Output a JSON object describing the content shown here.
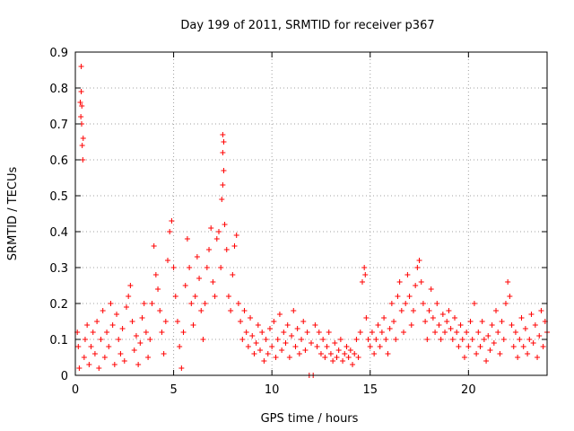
{
  "chart_data": {
    "type": "scatter",
    "title": "Day 199 of 2011, SRMTID for receiver p367",
    "xlabel": "GPS time / hours",
    "ylabel": "SRMTID / TECUs",
    "xlim": [
      0,
      24
    ],
    "ylim": [
      0,
      0.9
    ],
    "xticks": [
      0,
      5,
      10,
      15,
      20
    ],
    "xtick_labels": [
      "0",
      "5",
      "10",
      "15",
      "20"
    ],
    "yticks": [
      0,
      0.1,
      0.2,
      0.3,
      0.4,
      0.5,
      0.6,
      0.7,
      0.8,
      0.9
    ],
    "ytick_labels": [
      "0",
      "0.1",
      "0.2",
      "0.3",
      "0.4",
      "0.5",
      "0.6",
      "0.7",
      "0.8",
      "0.9"
    ],
    "grid": true,
    "marker": "plus",
    "series": [
      {
        "name": "SRMTID",
        "color": "#ff0000",
        "points": [
          [
            0.1,
            0.12
          ],
          [
            0.15,
            0.08
          ],
          [
            0.2,
            0.02
          ],
          [
            0.25,
            0.76
          ],
          [
            0.28,
            0.72
          ],
          [
            0.3,
            0.86
          ],
          [
            0.32,
            0.7
          ],
          [
            0.35,
            0.64
          ],
          [
            0.38,
            0.6
          ],
          [
            0.4,
            0.66
          ],
          [
            0.3,
            0.79
          ],
          [
            0.33,
            0.75
          ],
          [
            0.45,
            0.05
          ],
          [
            0.5,
            0.1
          ],
          [
            0.6,
            0.14
          ],
          [
            0.7,
            0.03
          ],
          [
            0.8,
            0.08
          ],
          [
            0.9,
            0.12
          ],
          [
            1.0,
            0.06
          ],
          [
            1.1,
            0.15
          ],
          [
            1.2,
            0.02
          ],
          [
            1.3,
            0.1
          ],
          [
            1.4,
            0.18
          ],
          [
            1.5,
            0.05
          ],
          [
            1.6,
            0.12
          ],
          [
            1.7,
            0.08
          ],
          [
            1.8,
            0.2
          ],
          [
            1.9,
            0.14
          ],
          [
            2.0,
            0.03
          ],
          [
            2.1,
            0.17
          ],
          [
            2.2,
            0.1
          ],
          [
            2.3,
            0.06
          ],
          [
            2.4,
            0.13
          ],
          [
            2.5,
            0.04
          ],
          [
            2.6,
            0.19
          ],
          [
            2.7,
            0.22
          ],
          [
            2.8,
            0.25
          ],
          [
            2.9,
            0.15
          ],
          [
            3.0,
            0.07
          ],
          [
            3.1,
            0.11
          ],
          [
            3.2,
            0.03
          ],
          [
            3.3,
            0.09
          ],
          [
            3.4,
            0.16
          ],
          [
            3.5,
            0.2
          ],
          [
            3.6,
            0.12
          ],
          [
            3.7,
            0.05
          ],
          [
            3.8,
            0.1
          ],
          [
            3.9,
            0.2
          ],
          [
            4.0,
            0.36
          ],
          [
            4.1,
            0.28
          ],
          [
            4.2,
            0.24
          ],
          [
            4.3,
            0.18
          ],
          [
            4.4,
            0.12
          ],
          [
            4.5,
            0.06
          ],
          [
            4.6,
            0.15
          ],
          [
            4.7,
            0.32
          ],
          [
            4.8,
            0.4
          ],
          [
            4.9,
            0.43
          ],
          [
            5.0,
            0.3
          ],
          [
            5.1,
            0.22
          ],
          [
            5.2,
            0.15
          ],
          [
            5.3,
            0.08
          ],
          [
            5.4,
            0.02
          ],
          [
            5.5,
            0.12
          ],
          [
            5.6,
            0.25
          ],
          [
            5.7,
            0.38
          ],
          [
            5.8,
            0.3
          ],
          [
            5.9,
            0.2
          ],
          [
            6.0,
            0.14
          ],
          [
            6.1,
            0.22
          ],
          [
            6.2,
            0.33
          ],
          [
            6.3,
            0.27
          ],
          [
            6.4,
            0.18
          ],
          [
            6.5,
            0.1
          ],
          [
            6.6,
            0.2
          ],
          [
            6.7,
            0.3
          ],
          [
            6.8,
            0.35
          ],
          [
            6.9,
            0.41
          ],
          [
            7.0,
            0.26
          ],
          [
            7.1,
            0.22
          ],
          [
            7.2,
            0.38
          ],
          [
            7.3,
            0.4
          ],
          [
            7.4,
            0.3
          ],
          [
            7.45,
            0.49
          ],
          [
            7.5,
            0.53
          ],
          [
            7.55,
            0.57
          ],
          [
            7.5,
            0.62
          ],
          [
            7.5,
            0.67
          ],
          [
            7.55,
            0.65
          ],
          [
            7.6,
            0.42
          ],
          [
            7.7,
            0.35
          ],
          [
            7.8,
            0.22
          ],
          [
            7.9,
            0.18
          ],
          [
            8.0,
            0.28
          ],
          [
            8.1,
            0.36
          ],
          [
            8.2,
            0.39
          ],
          [
            8.3,
            0.2
          ],
          [
            8.4,
            0.15
          ],
          [
            8.5,
            0.1
          ],
          [
            8.6,
            0.18
          ],
          [
            8.7,
            0.12
          ],
          [
            8.8,
            0.08
          ],
          [
            8.9,
            0.16
          ],
          [
            9.0,
            0.11
          ],
          [
            9.1,
            0.06
          ],
          [
            9.2,
            0.09
          ],
          [
            9.3,
            0.14
          ],
          [
            9.4,
            0.07
          ],
          [
            9.5,
            0.12
          ],
          [
            9.6,
            0.04
          ],
          [
            9.7,
            0.1
          ],
          [
            9.8,
            0.06
          ],
          [
            9.9,
            0.13
          ],
          [
            10.0,
            0.08
          ],
          [
            10.1,
            0.15
          ],
          [
            10.2,
            0.05
          ],
          [
            10.3,
            0.1
          ],
          [
            10.4,
            0.17
          ],
          [
            10.5,
            0.07
          ],
          [
            10.6,
            0.12
          ],
          [
            10.7,
            0.09
          ],
          [
            10.8,
            0.14
          ],
          [
            10.9,
            0.05
          ],
          [
            11.0,
            0.11
          ],
          [
            11.1,
            0.18
          ],
          [
            11.2,
            0.08
          ],
          [
            11.3,
            0.13
          ],
          [
            11.4,
            0.06
          ],
          [
            11.5,
            0.1
          ],
          [
            11.6,
            0.15
          ],
          [
            11.7,
            0.07
          ],
          [
            11.8,
            0.12
          ],
          [
            11.9,
            0.0
          ],
          [
            12.1,
            0.0
          ],
          [
            12.0,
            0.09
          ],
          [
            12.2,
            0.14
          ],
          [
            12.3,
            0.08
          ],
          [
            12.4,
            0.12
          ],
          [
            12.5,
            0.06
          ],
          [
            12.6,
            0.1
          ],
          [
            12.7,
            0.05
          ],
          [
            12.8,
            0.08
          ],
          [
            12.9,
            0.12
          ],
          [
            13.0,
            0.06
          ],
          [
            13.1,
            0.04
          ],
          [
            13.2,
            0.09
          ],
          [
            13.3,
            0.05
          ],
          [
            13.4,
            0.07
          ],
          [
            13.5,
            0.1
          ],
          [
            13.6,
            0.04
          ],
          [
            13.7,
            0.06
          ],
          [
            13.8,
            0.08
          ],
          [
            13.9,
            0.05
          ],
          [
            14.0,
            0.07
          ],
          [
            14.1,
            0.03
          ],
          [
            14.2,
            0.06
          ],
          [
            14.3,
            0.1
          ],
          [
            14.4,
            0.05
          ],
          [
            14.5,
            0.12
          ],
          [
            14.6,
            0.26
          ],
          [
            14.7,
            0.3
          ],
          [
            14.75,
            0.28
          ],
          [
            14.8,
            0.16
          ],
          [
            14.9,
            0.1
          ],
          [
            15.0,
            0.08
          ],
          [
            15.1,
            0.12
          ],
          [
            15.2,
            0.06
          ],
          [
            15.3,
            0.1
          ],
          [
            15.4,
            0.14
          ],
          [
            15.5,
            0.08
          ],
          [
            15.6,
            0.12
          ],
          [
            15.7,
            0.16
          ],
          [
            15.8,
            0.1
          ],
          [
            15.9,
            0.06
          ],
          [
            16.0,
            0.13
          ],
          [
            16.1,
            0.2
          ],
          [
            16.2,
            0.15
          ],
          [
            16.3,
            0.1
          ],
          [
            16.4,
            0.22
          ],
          [
            16.5,
            0.26
          ],
          [
            16.6,
            0.18
          ],
          [
            16.7,
            0.12
          ],
          [
            16.8,
            0.2
          ],
          [
            16.9,
            0.28
          ],
          [
            17.0,
            0.22
          ],
          [
            17.1,
            0.14
          ],
          [
            17.2,
            0.18
          ],
          [
            17.3,
            0.25
          ],
          [
            17.4,
            0.3
          ],
          [
            17.5,
            0.32
          ],
          [
            17.6,
            0.26
          ],
          [
            17.7,
            0.2
          ],
          [
            17.8,
            0.15
          ],
          [
            17.9,
            0.1
          ],
          [
            18.0,
            0.18
          ],
          [
            18.1,
            0.24
          ],
          [
            18.2,
            0.16
          ],
          [
            18.3,
            0.12
          ],
          [
            18.4,
            0.2
          ],
          [
            18.5,
            0.14
          ],
          [
            18.6,
            0.1
          ],
          [
            18.7,
            0.17
          ],
          [
            18.8,
            0.12
          ],
          [
            18.9,
            0.15
          ],
          [
            19.0,
            0.18
          ],
          [
            19.1,
            0.13
          ],
          [
            19.2,
            0.1
          ],
          [
            19.3,
            0.16
          ],
          [
            19.4,
            0.12
          ],
          [
            19.5,
            0.08
          ],
          [
            19.6,
            0.14
          ],
          [
            19.7,
            0.1
          ],
          [
            19.8,
            0.05
          ],
          [
            19.9,
            0.12
          ],
          [
            20.0,
            0.08
          ],
          [
            20.1,
            0.15
          ],
          [
            20.2,
            0.1
          ],
          [
            20.3,
            0.2
          ],
          [
            20.4,
            0.06
          ],
          [
            20.5,
            0.12
          ],
          [
            20.6,
            0.08
          ],
          [
            20.7,
            0.15
          ],
          [
            20.8,
            0.1
          ],
          [
            20.9,
            0.04
          ],
          [
            21.0,
            0.11
          ],
          [
            21.1,
            0.07
          ],
          [
            21.2,
            0.14
          ],
          [
            21.3,
            0.09
          ],
          [
            21.4,
            0.18
          ],
          [
            21.5,
            0.12
          ],
          [
            21.6,
            0.06
          ],
          [
            21.7,
            0.15
          ],
          [
            21.8,
            0.1
          ],
          [
            21.9,
            0.2
          ],
          [
            22.0,
            0.26
          ],
          [
            22.1,
            0.22
          ],
          [
            22.2,
            0.14
          ],
          [
            22.3,
            0.08
          ],
          [
            22.4,
            0.12
          ],
          [
            22.5,
            0.05
          ],
          [
            22.6,
            0.1
          ],
          [
            22.7,
            0.16
          ],
          [
            22.8,
            0.08
          ],
          [
            22.9,
            0.13
          ],
          [
            23.0,
            0.06
          ],
          [
            23.1,
            0.1
          ],
          [
            23.2,
            0.17
          ],
          [
            23.3,
            0.09
          ],
          [
            23.4,
            0.14
          ],
          [
            23.5,
            0.05
          ],
          [
            23.6,
            0.11
          ],
          [
            23.7,
            0.18
          ],
          [
            23.8,
            0.08
          ],
          [
            23.9,
            0.15
          ],
          [
            24.0,
            0.12
          ]
        ]
      }
    ]
  }
}
